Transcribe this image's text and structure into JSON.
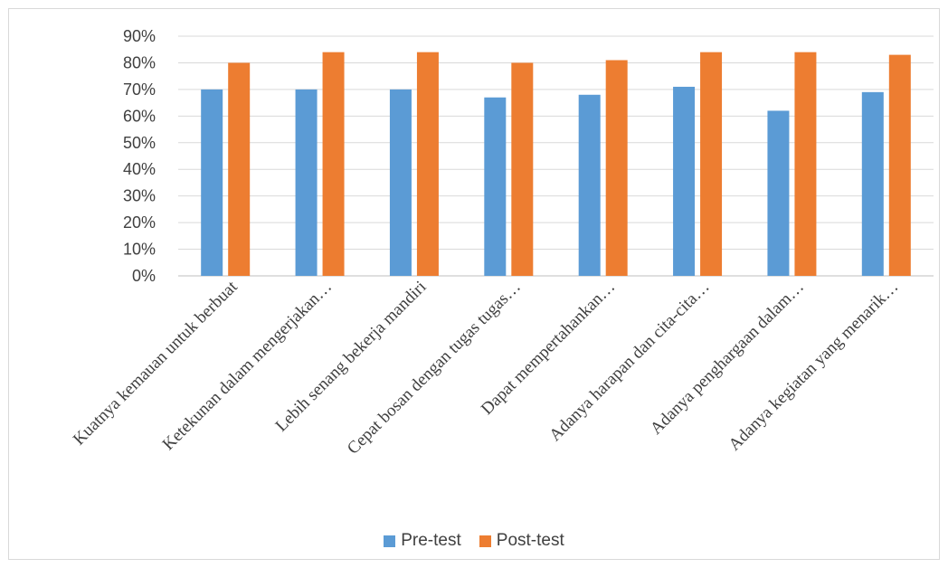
{
  "chart_data": {
    "type": "bar",
    "categories": [
      "Kuatnya kemauan untuk berbuat",
      "Ketekunan dalam mengerjakan…",
      "Lebih senang bekerja mandiri",
      "Cepat bosan dengan tugas tugas…",
      "Dapat mempertahankan…",
      "Adanya harapan dan cita-cita…",
      "Adanya penghargaan dalam…",
      "Adanya kegiatan yang menarik…"
    ],
    "series": [
      {
        "name": "Pre-test",
        "color": "#5b9bd5",
        "values": [
          70,
          70,
          70,
          67,
          68,
          71,
          62,
          69
        ]
      },
      {
        "name": "Post-test",
        "color": "#ed7d31",
        "values": [
          80,
          84,
          84,
          80,
          81,
          84,
          84,
          83
        ]
      }
    ],
    "y_ticks": [
      "0%",
      "10%",
      "20%",
      "30%",
      "40%",
      "50%",
      "60%",
      "70%",
      "80%",
      "90%"
    ],
    "ylim": [
      0,
      90
    ],
    "grid": true,
    "legend_position": "bottom",
    "title": "",
    "xlabel": "",
    "ylabel": ""
  }
}
